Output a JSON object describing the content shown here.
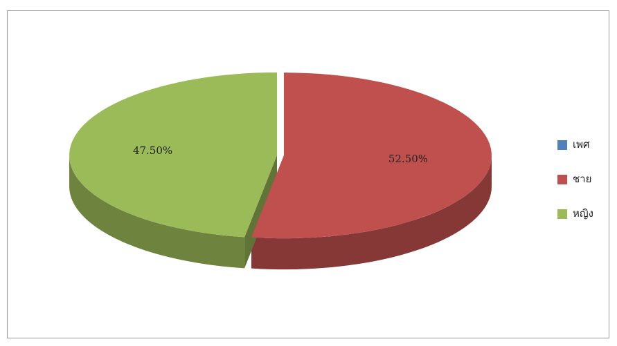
{
  "chart_data": {
    "type": "pie3d",
    "categories": [
      "เพศ",
      "ชาย",
      "หญิง"
    ],
    "values": [
      0,
      52.5,
      47.5
    ],
    "value_labels": [
      null,
      "52.50%",
      "47.50%"
    ],
    "colors": [
      "#4f81bd",
      "#c0504d",
      "#9bbb59"
    ],
    "legend": "right"
  }
}
